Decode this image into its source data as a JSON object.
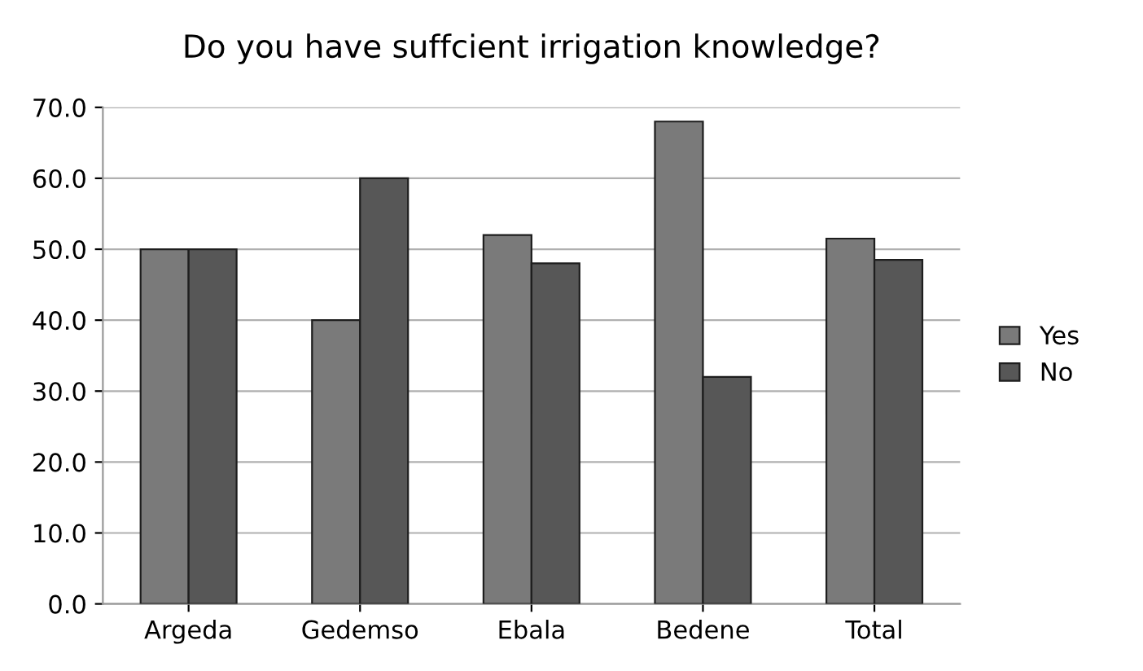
{
  "chart_data": {
    "type": "bar",
    "title": "Do you have suffcient irrigation knowledge?",
    "categories": [
      "Argeda",
      "Gedemso",
      "Ebala",
      "Bedene",
      "Total"
    ],
    "series": [
      {
        "name": "Yes",
        "color": "#7a7a7a",
        "values": [
          50,
          40,
          52,
          68,
          51.5
        ]
      },
      {
        "name": "No",
        "color": "#575757",
        "values": [
          50,
          60,
          48,
          32,
          48.5
        ]
      }
    ],
    "ylim": [
      0,
      70
    ],
    "yticks": [
      {
        "value": 0,
        "label": "0.0"
      },
      {
        "value": 10,
        "label": "10.0"
      },
      {
        "value": 20,
        "label": "20.0"
      },
      {
        "value": 30,
        "label": "30.0"
      },
      {
        "value": 40,
        "label": "40.0"
      },
      {
        "value": 50,
        "label": "50.0"
      },
      {
        "value": 60,
        "label": "60.0"
      },
      {
        "value": 70,
        "label": "70.0"
      }
    ],
    "grid": "y",
    "legend": "right"
  }
}
